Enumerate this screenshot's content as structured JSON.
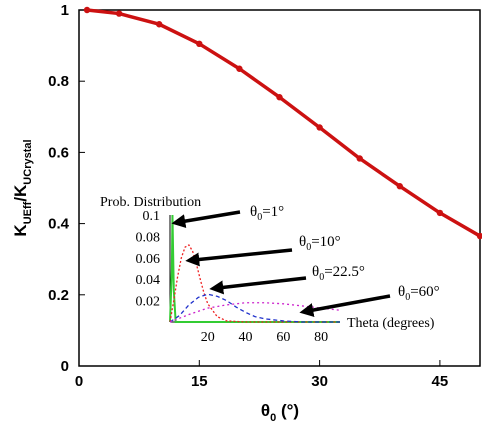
{
  "chart_data": [
    {
      "type": "line",
      "xlabel_symbol": "θ",
      "xlabel_sub": "0",
      "xlabel_unit": " (°)",
      "ylabel_main1": "K",
      "ylabel_sub1": "UEff",
      "ylabel_slash": "/K",
      "ylabel_sub2": "UCrystal",
      "xlim": [
        0,
        50
      ],
      "ylim": [
        0,
        1
      ],
      "xticks": [
        0,
        15,
        30,
        45
      ],
      "yticks": [
        0,
        0.2,
        0.4,
        0.6,
        0.8,
        1
      ],
      "ytick_labels": [
        "0",
        "0.2",
        "0.4",
        "0.6",
        "0.8",
        "1"
      ],
      "grid": false,
      "color": "#cc1111",
      "series": [
        {
          "x": [
            1,
            5,
            10,
            15,
            20,
            25,
            30,
            35,
            40,
            45,
            50
          ],
          "y": [
            1.0,
            0.99,
            0.96,
            0.905,
            0.835,
            0.755,
            0.67,
            0.583,
            0.505,
            0.43,
            0.365
          ]
        }
      ]
    },
    {
      "type": "line",
      "title": "Prob. Distribution",
      "xlabel": "Theta (degrees)",
      "xlim": [
        0,
        90
      ],
      "ylim": [
        0,
        0.1
      ],
      "xticks": [
        20,
        40,
        60,
        80
      ],
      "yticks": [
        0.02,
        0.04,
        0.06,
        0.08,
        0.1
      ],
      "ytick_labels": [
        "0.02",
        "0.04",
        "0.06",
        "0.08",
        "0.1"
      ],
      "series": [
        {
          "name": "θ0=1°",
          "color": "#33cc33",
          "x": [
            0,
            1,
            1.3,
            2,
            3,
            90
          ],
          "y": [
            0,
            0.05,
            0.1,
            0.03,
            0,
            0
          ]
        },
        {
          "name": "θ0=10°",
          "color": "#ee2222",
          "x": [
            0,
            2,
            4,
            6,
            8,
            10,
            12,
            14,
            16,
            18,
            20,
            25,
            30,
            40,
            90
          ],
          "y": [
            0,
            0.02,
            0.042,
            0.06,
            0.07,
            0.072,
            0.066,
            0.054,
            0.04,
            0.027,
            0.017,
            0.005,
            0.001,
            0,
            0
          ]
        },
        {
          "name": "θ0=22.5°",
          "color": "#2233cc",
          "x": [
            0,
            5,
            10,
            15,
            20,
            25,
            30,
            35,
            40,
            45,
            50,
            60,
            70,
            90
          ],
          "y": [
            0,
            0.006,
            0.016,
            0.023,
            0.026,
            0.024,
            0.02,
            0.014,
            0.009,
            0.005,
            0.003,
            0.001,
            0,
            0
          ]
        },
        {
          "name": "θ0=60°",
          "color": "#cc22cc",
          "x": [
            0,
            10,
            20,
            30,
            40,
            50,
            60,
            70,
            80,
            90
          ],
          "y": [
            0,
            0.007,
            0.013,
            0.016,
            0.018,
            0.018,
            0.017,
            0.015,
            0.013,
            0.011
          ]
        }
      ],
      "annotations": [
        {
          "sym": "θ",
          "sub": "0",
          "val": "=1°"
        },
        {
          "sym": "θ",
          "sub": "0",
          "val": "=10°"
        },
        {
          "sym": "θ",
          "sub": "0",
          "val": "=22.5°"
        },
        {
          "sym": "θ",
          "sub": "0",
          "val": "=60°"
        }
      ]
    }
  ]
}
